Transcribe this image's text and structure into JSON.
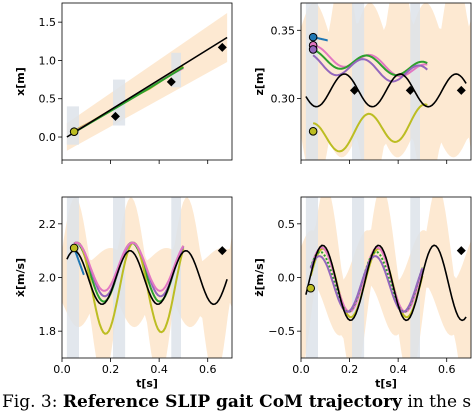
{
  "figure": {
    "caption_prefix": "Fig. 3: ",
    "caption_bold": "Reference SLIP gait CoM trajectory",
    "caption_rest": " in the sagittal"
  },
  "colors": {
    "reference": "#000000",
    "band_orange": "#fde9d2",
    "band_grey": "#dde3ea",
    "run_blue": "#1f77b4",
    "run_green": "#2ca02c",
    "run_pink": "#e377c2",
    "run_violet": "#9467bd",
    "run_olive": "#bcbd22",
    "marker_diamond": "#000000"
  },
  "chart_data": [
    {
      "type": "line",
      "ylabel": "x[m]",
      "xlabel": "",
      "xlim": [
        0.0,
        0.7
      ],
      "ylim": [
        -0.3,
        1.75
      ],
      "xticks": [
        0.0,
        0.2,
        0.4,
        0.6
      ],
      "yticks": [
        0.0,
        0.5,
        1.0,
        1.5
      ],
      "ytick_labels": [
        "0.0",
        "0.5",
        "1.0",
        "1.5"
      ],
      "show_xtick_labels": false,
      "reference": {
        "x": [
          0.02,
          0.68
        ],
        "y": [
          0.0,
          1.3
        ]
      },
      "band": {
        "x": [
          0.02,
          0.68
        ],
        "lower": [
          -0.18,
          0.98
        ],
        "upper": [
          0.18,
          1.62
        ]
      },
      "stance_phases": [
        [
          0.02,
          0.07
        ],
        [
          0.21,
          0.26
        ],
        [
          0.45,
          0.49
        ]
      ],
      "stance_y": [
        [
          -0.1,
          0.4
        ],
        [
          0.15,
          0.75
        ],
        [
          0.65,
          1.1
        ]
      ],
      "series": [
        {
          "color_key": "run_olive",
          "x": [
            0.05,
            0.12,
            0.2,
            0.28,
            0.36,
            0.45,
            0.5
          ],
          "y": [
            0.08,
            0.2,
            0.35,
            0.5,
            0.63,
            0.82,
            0.92
          ]
        },
        {
          "color_key": "run_pink",
          "x": [
            0.05,
            0.15,
            0.25,
            0.35,
            0.44,
            0.5
          ],
          "y": [
            0.07,
            0.25,
            0.45,
            0.62,
            0.8,
            0.9
          ]
        },
        {
          "color_key": "run_green",
          "x": [
            0.05,
            0.2,
            0.35,
            0.5
          ],
          "y": [
            0.06,
            0.34,
            0.62,
            0.91
          ]
        }
      ],
      "start_marker": {
        "x": 0.05,
        "y": 0.07
      },
      "diamonds": {
        "x": [
          0.22,
          0.45,
          0.66
        ],
        "y": [
          0.27,
          0.72,
          1.17
        ]
      }
    },
    {
      "type": "line",
      "ylabel": "z[m]",
      "xlabel": "",
      "xlim": [
        0.0,
        0.7
      ],
      "ylim": [
        0.255,
        0.37
      ],
      "xticks": [
        0.0,
        0.2,
        0.4,
        0.6
      ],
      "yticks": [
        0.3,
        0.35
      ],
      "ytick_labels": [
        "0.30",
        "0.35"
      ],
      "show_xtick_labels": false,
      "reference": {
        "fn": "z_ref"
      },
      "band": {
        "fn": "z_band"
      },
      "stance_phases": [
        [
          0.02,
          0.07
        ],
        [
          0.21,
          0.26
        ],
        [
          0.45,
          0.49
        ]
      ],
      "series": [
        {
          "color_key": "run_blue",
          "fn": "z_blue",
          "x0": 0.05,
          "x1": 0.11
        },
        {
          "color_key": "run_pink",
          "fn": "z_pink",
          "x0": 0.05,
          "x1": 0.52
        },
        {
          "color_key": "run_green",
          "fn": "z_green",
          "x0": 0.05,
          "x1": 0.52
        },
        {
          "color_key": "run_violet",
          "fn": "z_violet",
          "x0": 0.05,
          "x1": 0.52
        },
        {
          "color_key": "run_olive",
          "fn": "z_olive",
          "x0": 0.05,
          "x1": 0.52
        }
      ],
      "start_markers": [
        {
          "color_key": "run_blue",
          "x": 0.05,
          "y": 0.345
        },
        {
          "color_key": "run_pink",
          "x": 0.05,
          "y": 0.339
        },
        {
          "color_key": "run_violet",
          "x": 0.05,
          "y": 0.336
        },
        {
          "color_key": "run_olive",
          "x": 0.05,
          "y": 0.276
        }
      ],
      "diamonds": {
        "x": [
          0.22,
          0.45,
          0.66
        ],
        "y": [
          0.306,
          0.306,
          0.306
        ]
      }
    },
    {
      "type": "line",
      "ylabel": "ẋ[m/s]",
      "xlabel": "t[s]",
      "xlim": [
        0.0,
        0.7
      ],
      "ylim": [
        1.7,
        2.3
      ],
      "xticks": [
        0.0,
        0.2,
        0.4,
        0.6
      ],
      "xtick_labels": [
        "0.0",
        "0.2",
        "0.4",
        "0.6"
      ],
      "yticks": [
        1.8,
        2.0,
        2.2
      ],
      "ytick_labels": [
        "1.8",
        "2.0",
        "2.2"
      ],
      "show_xtick_labels": true,
      "reference": {
        "fn": "xd_ref"
      },
      "band": {
        "fn": "xd_band"
      },
      "stance_phases": [
        [
          0.02,
          0.07
        ],
        [
          0.21,
          0.26
        ],
        [
          0.45,
          0.49
        ]
      ],
      "series": [
        {
          "color_key": "run_blue",
          "fn": "xd_blue",
          "x0": 0.05,
          "x1": 0.09
        },
        {
          "color_key": "run_green",
          "fn": "xd_green",
          "x0": 0.05,
          "x1": 0.5
        },
        {
          "color_key": "run_olive",
          "fn": "xd_olive",
          "x0": 0.05,
          "x1": 0.5
        },
        {
          "color_key": "run_violet",
          "fn": "xd_violet",
          "x0": 0.05,
          "x1": 0.5
        },
        {
          "color_key": "run_pink",
          "fn": "xd_pink",
          "x0": 0.05,
          "x1": 0.5
        }
      ],
      "start_marker": {
        "x": 0.05,
        "y": 2.11
      },
      "diamonds": {
        "x": [
          0.66
        ],
        "y": [
          2.1
        ]
      }
    },
    {
      "type": "line",
      "ylabel": "ż[m/s]",
      "xlabel": "t[s]",
      "xlim": [
        0.0,
        0.7
      ],
      "ylim": [
        -0.75,
        0.75
      ],
      "xticks": [
        0.0,
        0.2,
        0.4,
        0.6
      ],
      "xtick_labels": [
        "0.0",
        "0.2",
        "0.4",
        "0.6"
      ],
      "yticks": [
        -0.5,
        0.0,
        0.5
      ],
      "ytick_labels": [
        "−0.5",
        "0.0",
        "0.5"
      ],
      "show_xtick_labels": true,
      "reference": {
        "fn": "zd_ref"
      },
      "band": {
        "fn": "zd_band"
      },
      "stance_phases": [
        [
          0.02,
          0.07
        ],
        [
          0.21,
          0.26
        ],
        [
          0.45,
          0.49
        ]
      ],
      "series": [
        {
          "color_key": "run_olive",
          "fn": "zd_olive",
          "x0": 0.04,
          "x1": 0.5
        },
        {
          "color_key": "run_pink",
          "fn": "zd_pink",
          "x0": 0.04,
          "x1": 0.5
        },
        {
          "color_key": "run_green",
          "fn": "zd_green",
          "x0": 0.04,
          "x1": 0.5,
          "dotted": true
        },
        {
          "color_key": "run_violet",
          "fn": "zd_violet",
          "x0": 0.04,
          "x1": 0.5
        }
      ],
      "start_marker": {
        "x": 0.04,
        "y": -0.1
      },
      "diamonds": {
        "x": [
          0.66
        ],
        "y": [
          0.25
        ]
      }
    }
  ]
}
